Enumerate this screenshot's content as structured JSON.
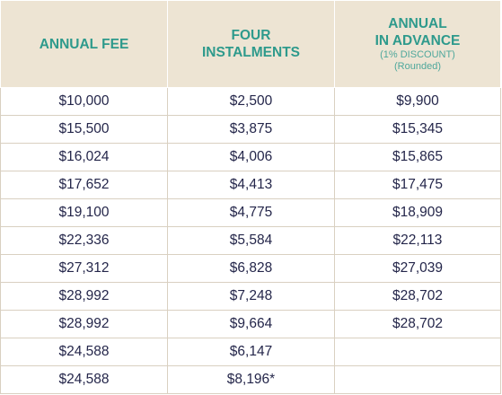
{
  "headers": {
    "annual_fee": "ANNUAL FEE",
    "four_instalments_line1": "FOUR",
    "four_instalments_line2": "INSTALMENTS",
    "annual_advance_line1": "ANNUAL",
    "annual_advance_line2": "IN ADVANCE",
    "annual_advance_note1": "(1% DISCOUNT)",
    "annual_advance_note2": "(Rounded)"
  },
  "rows": [
    {
      "annual_fee": "$10,000",
      "four_instalments": "$2,500",
      "annual_in_advance": "$9,900"
    },
    {
      "annual_fee": "$15,500",
      "four_instalments": "$3,875",
      "annual_in_advance": "$15,345"
    },
    {
      "annual_fee": "$16,024",
      "four_instalments": "$4,006",
      "annual_in_advance": "$15,865"
    },
    {
      "annual_fee": "$17,652",
      "four_instalments": "$4,413",
      "annual_in_advance": "$17,475"
    },
    {
      "annual_fee": "$19,100",
      "four_instalments": "$4,775",
      "annual_in_advance": "$18,909"
    },
    {
      "annual_fee": "$22,336",
      "four_instalments": "$5,584",
      "annual_in_advance": "$22,113"
    },
    {
      "annual_fee": "$27,312",
      "four_instalments": "$6,828",
      "annual_in_advance": "$27,039"
    },
    {
      "annual_fee": "$28,992",
      "four_instalments": "$7,248",
      "annual_in_advance": "$28,702"
    },
    {
      "annual_fee": "$28,992",
      "four_instalments": "$9,664",
      "annual_in_advance": "$28,702"
    },
    {
      "annual_fee": "$24,588",
      "four_instalments": "$6,147",
      "annual_in_advance": ""
    },
    {
      "annual_fee": "$24,588",
      "four_instalments": "$8,196*",
      "annual_in_advance": ""
    }
  ],
  "colors": {
    "header_background": "#ede4d3",
    "header_text": "#2e9a8c",
    "body_text": "#24264a",
    "border": "#d9d0c1"
  }
}
